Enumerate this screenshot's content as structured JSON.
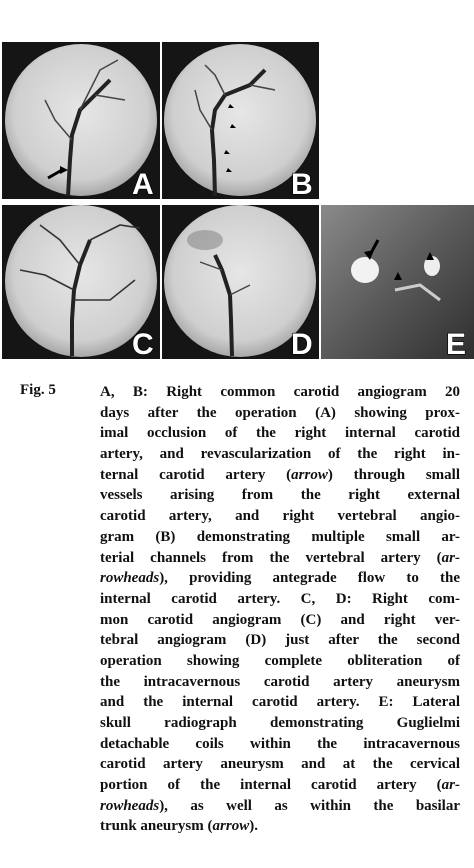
{
  "figure": {
    "panels": [
      "A",
      "B",
      "C",
      "D",
      "E"
    ]
  },
  "caption": {
    "label": "Fig. 5",
    "lines": [
      [
        "A, B: Right common carotid angiogram 20"
      ],
      [
        "days after the operation (A) showing prox-"
      ],
      [
        "imal occlusion of the right internal carotid"
      ],
      [
        "artery, and revascularization of the right in-"
      ],
      [
        "ternal carotid artery (",
        {
          "italic": "arrow"
        },
        ") through small"
      ],
      [
        "vessels arising from the right external"
      ],
      [
        "carotid artery, and right vertebral angio-"
      ],
      [
        "gram (B) demonstrating multiple small ar-"
      ],
      [
        "terial channels from the vertebral artery (",
        {
          "italic": "ar-"
        }
      ],
      [
        {
          "italic": "rowheads"
        },
        "), providing antegrade flow to the"
      ],
      [
        "internal carotid artery.  C, D: Right com-"
      ],
      [
        "mon carotid angiogram (C) and right ver-"
      ],
      [
        "tebral angiogram (D) just after the second"
      ],
      [
        "operation showing complete obliteration of"
      ],
      [
        "the intracavernous carotid artery aneurysm"
      ],
      [
        "and the internal carotid artery.  E: Lateral"
      ],
      [
        "skull radiograph demonstrating Guglielmi"
      ],
      [
        "detachable coils within the intracavernous"
      ],
      [
        "carotid artery aneurysm and at the cervical"
      ],
      [
        "portion of the internal carotid artery (",
        {
          "italic": "ar-"
        }
      ],
      [
        {
          "italic": "rowheads"
        },
        "), as well as within the basilar"
      ],
      [
        "trunk aneurysm (",
        {
          "italic": "arrow"
        },
        ")."
      ]
    ]
  }
}
